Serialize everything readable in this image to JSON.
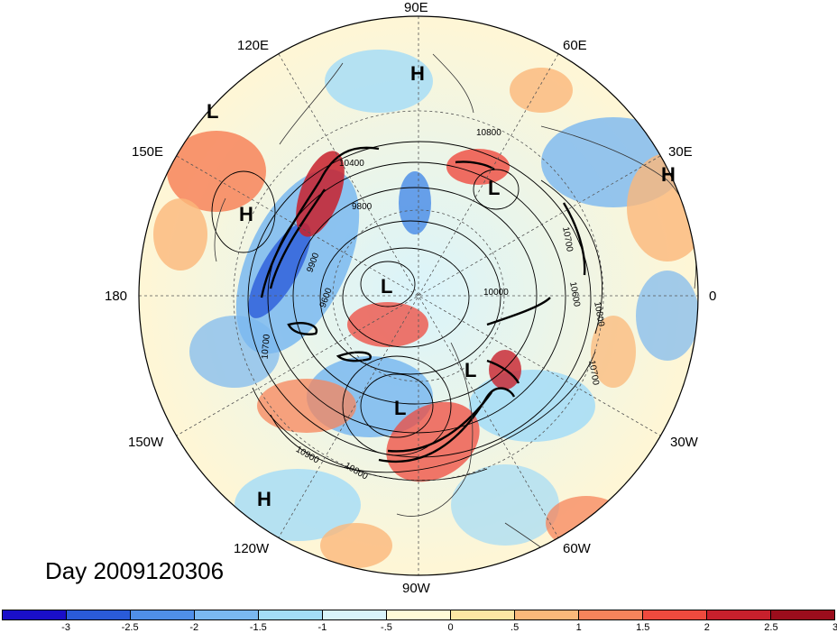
{
  "map": {
    "projection": "north-polar-stereographic",
    "center_longitude_at_top": "90E",
    "longitude_labels": {
      "l90e": "90E",
      "l60e": "60E",
      "l30e": "30E",
      "l0": "0",
      "l30w": "30W",
      "l60w": "60W",
      "l90w": "90W",
      "l120w": "120W",
      "l150w": "150W",
      "l180": "180",
      "l150e": "150E",
      "l120e": "120E"
    },
    "pressure_centers": [
      {
        "type": "H",
        "location": "Central Asia"
      },
      {
        "type": "H",
        "location": "Europe"
      },
      {
        "type": "H",
        "location": "NW Pacific"
      },
      {
        "type": "H",
        "location": "NE Pacific"
      },
      {
        "type": "L",
        "location": "Far East"
      },
      {
        "type": "L",
        "location": "Barents"
      },
      {
        "type": "L",
        "location": "Arctic"
      },
      {
        "type": "L",
        "location": "Greenland"
      },
      {
        "type": "L",
        "location": "Hudson Bay"
      }
    ],
    "contour_labels": {
      "c1": "10800",
      "c2": "10400",
      "c3": "9800",
      "c4": "9900",
      "c5": "9600",
      "c6": "10000",
      "c7": "10700",
      "c8": "10900",
      "c9": "10800",
      "c10": "10600",
      "c11": "10700",
      "c12": "10800",
      "c13": "10700"
    },
    "date_label": "Day 2009120306"
  },
  "colorbar": {
    "colors": [
      "#1a0fc9",
      "#2a5bd9",
      "#4f8fe8",
      "#7ab8f0",
      "#a3dcf7",
      "#d9f4fb",
      "#fffbd7",
      "#fde6a4",
      "#fbb87a",
      "#f7845b",
      "#ef4a3e",
      "#c8202c",
      "#9b0d1c"
    ],
    "tick_labels": [
      "-3",
      "-2.5",
      "-2",
      "-1.5",
      "-1",
      "-.5",
      "0",
      ".5",
      "1",
      "1.5",
      "2",
      "2.5",
      "3"
    ]
  }
}
